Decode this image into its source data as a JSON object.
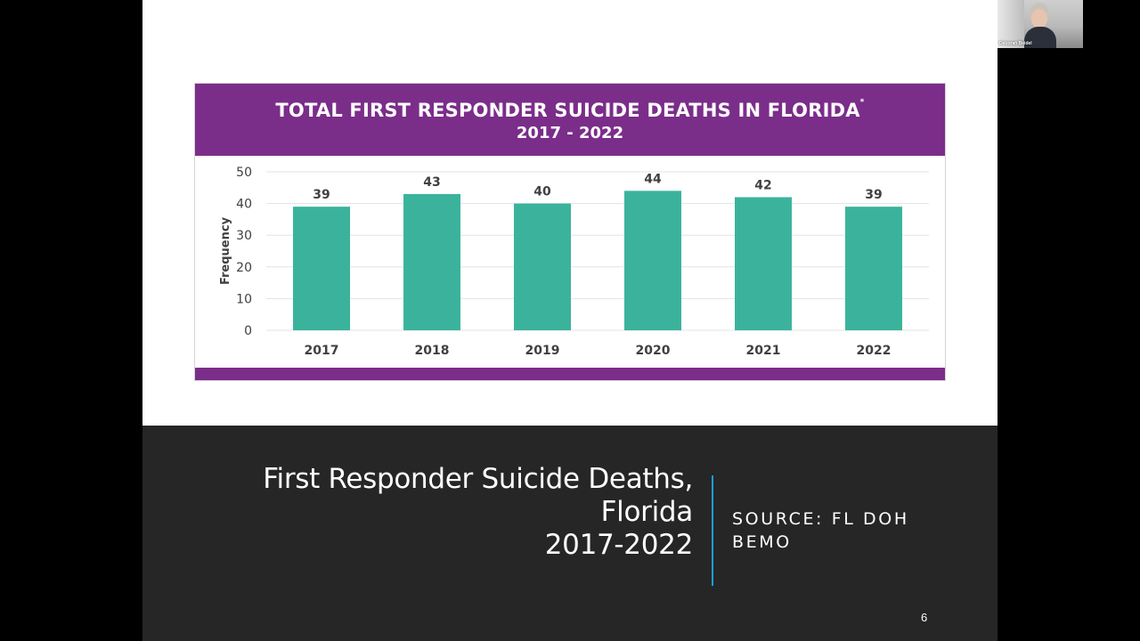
{
  "slide": {
    "caption": {
      "title_lines": [
        "First Responder Suicide Deaths,",
        "Florida",
        "2017-2022"
      ],
      "source_lines": [
        "SOURCE: FL DOH",
        "BEMO"
      ]
    },
    "slide_number": "6"
  },
  "webcam": {
    "participant_name": "Deborah Beidel"
  },
  "colors": {
    "header_purple": "#7b2d8a",
    "bar_teal": "#3bb39c",
    "caption_bg": "#262626",
    "divider_blue": "#1aa0d6"
  },
  "chart_data": {
    "type": "bar",
    "title": "TOTAL FIRST RESPONDER SUICIDE DEATHS IN FLORIDA",
    "title_mark": "*",
    "subtitle": "2017 - 2022",
    "categories": [
      "2017",
      "2018",
      "2019",
      "2020",
      "2021",
      "2022"
    ],
    "values": [
      39,
      43,
      40,
      44,
      42,
      39
    ],
    "data_labels": [
      "39",
      "43",
      "40",
      "44",
      "42",
      "39"
    ],
    "xlabel": "",
    "ylabel": "Frequency",
    "ylim": [
      0,
      50
    ],
    "yticks": [
      0,
      10,
      20,
      30,
      40,
      50
    ],
    "grid": true,
    "legend": "none"
  }
}
